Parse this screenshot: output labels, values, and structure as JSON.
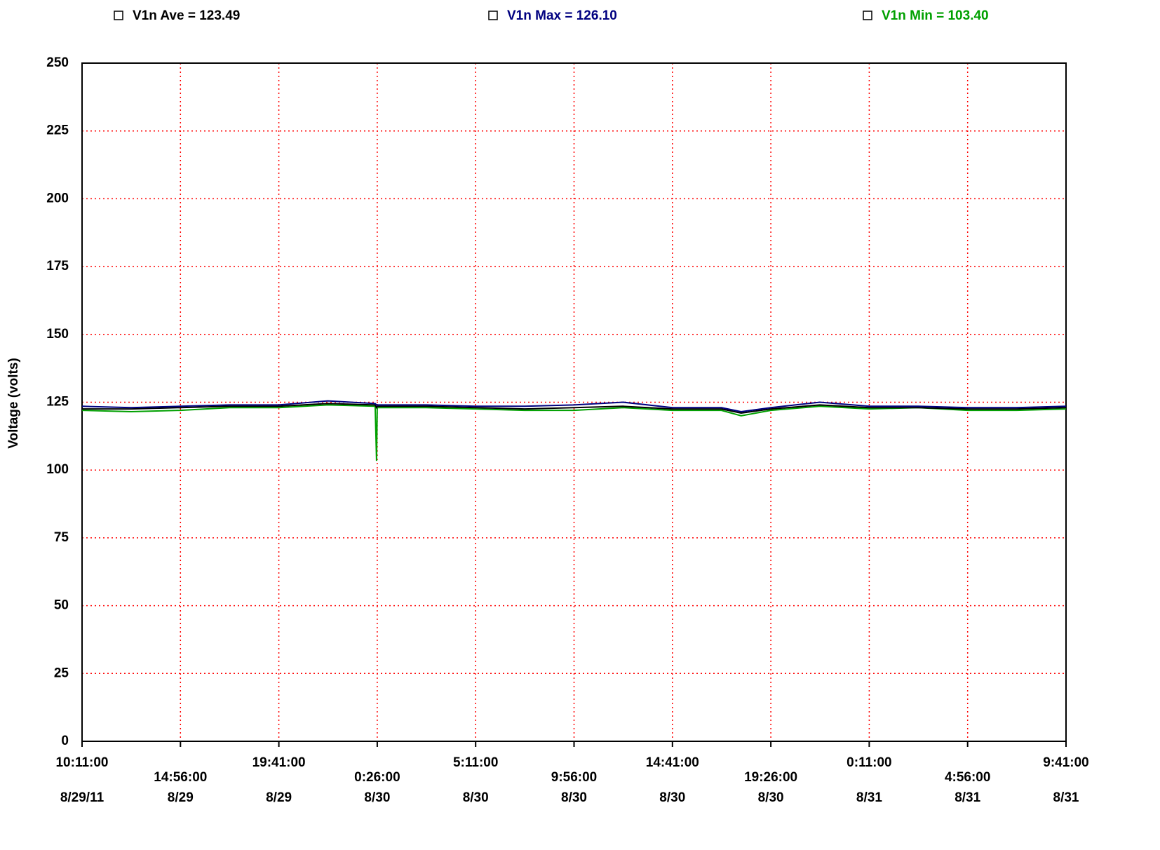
{
  "chart_data": {
    "type": "line",
    "y_label": "Voltage (volts)",
    "x": [
      "2011-08-29T10:11",
      "2011-08-29T12:33",
      "2011-08-29T14:56",
      "2011-08-29T17:18",
      "2011-08-29T19:41",
      "2011-08-29T22:03",
      "2011-08-30T00:20",
      "2011-08-30T00:24",
      "2011-08-30T00:26",
      "2011-08-30T02:48",
      "2011-08-30T05:11",
      "2011-08-30T07:33",
      "2011-08-30T09:56",
      "2011-08-30T12:18",
      "2011-08-30T14:41",
      "2011-08-30T17:03",
      "2011-08-30T18:00",
      "2011-08-30T19:26",
      "2011-08-30T21:48",
      "2011-08-31T00:11",
      "2011-08-31T02:33",
      "2011-08-31T04:56",
      "2011-08-31T07:18",
      "2011-08-31T09:41"
    ],
    "series": [
      {
        "name": "V1n Ave = 123.49",
        "color": "#000000",
        "values": [
          122.5,
          122.5,
          123,
          123.5,
          123.5,
          124.5,
          124,
          123,
          123.5,
          123.5,
          123,
          122.5,
          123,
          123.5,
          122.5,
          122.5,
          121,
          122.5,
          124,
          123,
          123,
          122.5,
          122.5,
          123
        ]
      },
      {
        "name": "V1n Max = 126.10",
        "color": "#000080",
        "values": [
          123.5,
          123,
          123.5,
          124,
          124,
          125.5,
          124.5,
          124,
          124,
          124,
          123.5,
          123.5,
          124,
          125,
          123,
          123,
          121.5,
          123,
          125,
          123.5,
          123.5,
          123,
          123,
          123.5
        ]
      },
      {
        "name": "V1n Min = 103.40",
        "color": "#00a000",
        "values": [
          122,
          121.5,
          122,
          123,
          123,
          124,
          123.5,
          103.4,
          123,
          123,
          122.5,
          122,
          122,
          123,
          122,
          122,
          120,
          122,
          123.5,
          122.5,
          123,
          122,
          122,
          122.5
        ]
      }
    ],
    "xlim": [
      "2011-08-29T10:11",
      "2011-08-31T09:41"
    ],
    "xticks": [
      {
        "value": "2011-08-29T10:11",
        "label": [
          "10:11:00",
          "8/29/11"
        ]
      },
      {
        "value": "2011-08-29T14:56",
        "label": [
          "14:56:00",
          "8/29"
        ]
      },
      {
        "value": "2011-08-29T19:41",
        "label": [
          "19:41:00",
          "8/29"
        ]
      },
      {
        "value": "2011-08-30T00:26",
        "label": [
          "0:26:00",
          "8/30"
        ]
      },
      {
        "value": "2011-08-30T05:11",
        "label": [
          "5:11:00",
          "8/30"
        ]
      },
      {
        "value": "2011-08-30T09:56",
        "label": [
          "9:56:00",
          "8/30"
        ]
      },
      {
        "value": "2011-08-30T14:41",
        "label": [
          "14:41:00",
          "8/30"
        ]
      },
      {
        "value": "2011-08-30T19:26",
        "label": [
          "19:26:00",
          "8/30"
        ]
      },
      {
        "value": "2011-08-31T00:11",
        "label": [
          "0:11:00",
          "8/31"
        ]
      },
      {
        "value": "2011-08-31T04:56",
        "label": [
          "4:56:00",
          "8/31"
        ]
      },
      {
        "value": "2011-08-31T09:41",
        "label": [
          "9:41:00",
          "8/31"
        ]
      }
    ],
    "ylim": [
      0,
      250
    ],
    "yticks": [
      0,
      25,
      50,
      75,
      100,
      125,
      150,
      175,
      200,
      225,
      250
    ],
    "grid": true,
    "grid_color": "#ff0000"
  }
}
